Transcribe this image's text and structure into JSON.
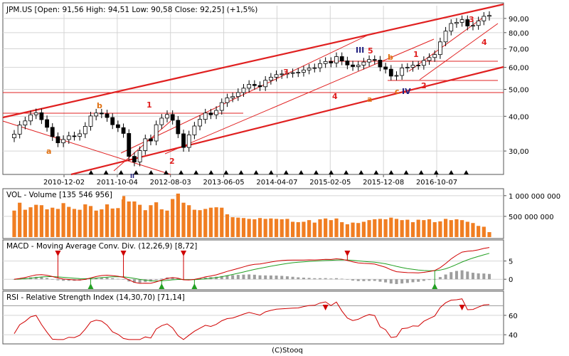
{
  "chart_data": [
    {
      "type": "candlestick",
      "title": "JPM.US",
      "ohlc": {
        "open": "91,56",
        "high": "94,51",
        "low": "90,58",
        "close": "92,25",
        "change": "(+1,5%)"
      },
      "header_text": "JPM.US [Open: 91,56  High: 94,51  Low: 90,58  Close: 92,25] (+1,5%)",
      "scale": "log",
      "ylim": [
        25,
        100
      ],
      "y_ticks": [
        "30,00",
        "40,00",
        "50,00",
        "60,00",
        "70,00",
        "80,00",
        "90,00"
      ],
      "y_tick_values": [
        30,
        40,
        50,
        60,
        70,
        80,
        90
      ],
      "x_ticks": [
        "2010-12-02",
        "2011-10-04",
        "2012-08-03",
        "2013-06-05",
        "2014-04-07",
        "2015-02-05",
        "2015-12-08",
        "2016-10-07"
      ],
      "closes": [
        34.5,
        37.2,
        38.5,
        40.5,
        41.2,
        38.9,
        36.5,
        33.8,
        32.1,
        33,
        34,
        33.9,
        34.6,
        36.8,
        40.1,
        41.1,
        40.8,
        39.6,
        37.3,
        36.4,
        34.7,
        28.7,
        27.4,
        30.1,
        33.2,
        32.6,
        37.3,
        39.4,
        40.6,
        38.7,
        34.6,
        30.9,
        34.3,
        36.9,
        39,
        41.1,
        40.5,
        42,
        44.8,
        46.6,
        47.1,
        48.7,
        50.5,
        52.1,
        51.6,
        51.1,
        53.9,
        55.3,
        56.5,
        56.8,
        57.1,
        57.4,
        57.6,
        58.7,
        59.6,
        59.8,
        61.9,
        63,
        62.2,
        65.6,
        63.3,
        61.2,
        60.4,
        61.1,
        62.7,
        64,
        63.7,
        60.2,
        59.1,
        55.8,
        56.1,
        59.7,
        60,
        61.1,
        61,
        63.5,
        65.1,
        66.7,
        74.1,
        81,
        86.3,
        87.1,
        89.1,
        84.5,
        84.9,
        88.2,
        91.6,
        92.25
      ],
      "volume": {
        "label": "VOL - Volume [135 546 956]",
        "last": 135546956,
        "y_ticks": [
          "500 000 000",
          "1 000 000 000"
        ],
        "values": [
          6.4,
          8.3,
          6.6,
          7.2,
          7.8,
          7.7,
          6.7,
          7.1,
          6.8,
          8.2,
          7.3,
          6.8,
          6.6,
          7.9,
          7.5,
          6.4,
          6.7,
          7.9,
          6.9,
          7,
          9.9,
          8.6,
          8.6,
          7.8,
          6.5,
          7.7,
          8.4,
          6.7,
          6.4,
          9.2,
          10.5,
          8.3,
          7.7,
          6.6,
          6.5,
          6.8,
          7.1,
          7.2,
          7.1,
          5.5,
          4.8,
          4.7,
          4.6,
          4.4,
          4.3,
          4.6,
          4.4,
          4.5,
          4.4,
          4.3,
          4.4,
          3.7,
          3.6,
          3.7,
          4.1,
          3.5,
          4.3,
          4.5,
          4.1,
          4.5,
          3.6,
          3.1,
          3.5,
          3.4,
          3.7,
          4.1,
          4.3,
          4.4,
          4.3,
          4.7,
          4.4,
          4.1,
          4.2,
          3.6,
          4.2,
          4.1,
          4.3,
          3.6,
          3.8,
          4.4,
          4.1,
          4.3,
          4.1,
          3.7,
          3.4,
          2.7,
          2.5,
          1.2
        ]
      },
      "macd": {
        "label": "MACD - Moving Average Conv. Div. (12,26,9) [8,72]",
        "last": 8.72,
        "y_ticks": [
          "0",
          "5"
        ],
        "y_tick_values": [
          0,
          5
        ],
        "ylim": [
          -2.5,
          10
        ]
      },
      "rsi": {
        "label": "RSI - Relative Strength Index (14,30,70) [71,14]",
        "last": 71.14,
        "y_ticks": [
          "40",
          "60"
        ],
        "y_tick_values": [
          40,
          60
        ],
        "ylim": [
          32,
          82
        ],
        "levels": [
          30,
          70
        ]
      },
      "wave_labels": [
        {
          "text": "b",
          "color": "orange"
        },
        {
          "text": "a",
          "color": "orange"
        },
        {
          "text": "1",
          "color": "red"
        },
        {
          "text": "2",
          "color": "red"
        },
        {
          "text": "3",
          "color": "red"
        },
        {
          "text": "4",
          "color": "red"
        },
        {
          "text": "5",
          "color": "red"
        },
        {
          "text": "III",
          "color": "navy"
        },
        {
          "text": "a",
          "color": "orange"
        },
        {
          "text": "b",
          "color": "orange"
        },
        {
          "text": "1",
          "color": "red"
        },
        {
          "text": "c",
          "color": "orange"
        },
        {
          "text": "IV",
          "color": "navy"
        },
        {
          "text": "2",
          "color": "red"
        },
        {
          "text": "3",
          "color": "red"
        },
        {
          "text": "4",
          "color": "red"
        },
        {
          "text": "II",
          "color": "navy"
        }
      ],
      "colors": {
        "up": "#ffffff",
        "down": "#000000",
        "trendline": "#e02020",
        "volume": "#f07e22",
        "macd": "#d00000",
        "signal": "#22a022",
        "hist": "#9e9e9e",
        "wave_red": "#e02020",
        "wave_orange": "#e07010",
        "wave_navy": "#202080"
      }
    }
  ],
  "footer": "(C)Stooq"
}
